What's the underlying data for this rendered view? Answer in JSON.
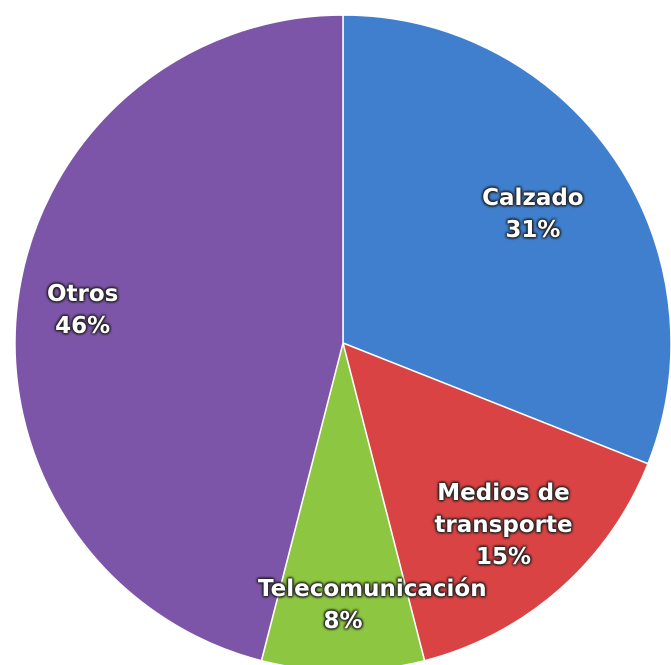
{
  "chart_data": {
    "type": "pie",
    "categories": [
      "Calzado",
      "Medios de transporte",
      "Telecomunicación",
      "Otros"
    ],
    "values": [
      31,
      15,
      8,
      46
    ],
    "value_labels": [
      "31%",
      "15%",
      "8%",
      "46%"
    ],
    "colors": [
      "#3f7fce",
      "#d94343",
      "#8dc641",
      "#7d55a8"
    ]
  }
}
